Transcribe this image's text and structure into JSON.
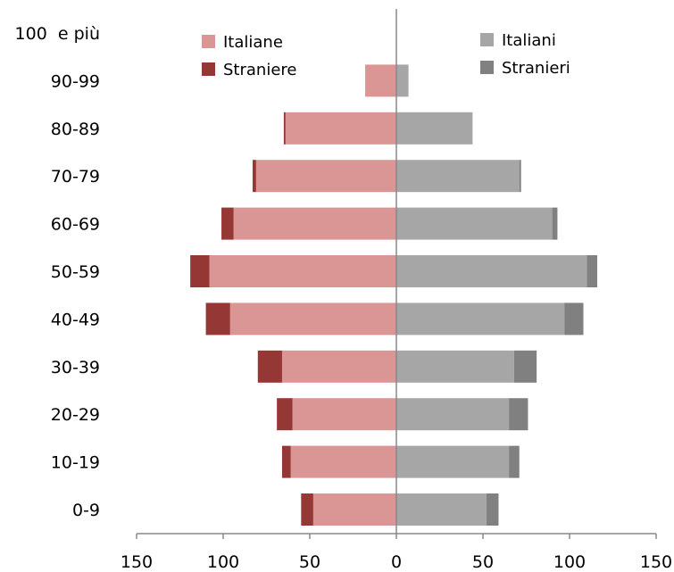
{
  "chart_data": {
    "type": "bar",
    "orientation": "horizontal",
    "layout": "population-pyramid",
    "categories": [
      "0-9",
      "10-19",
      "20-29",
      "30-39",
      "40-49",
      "50-59",
      "60-69",
      "70-79",
      "80-89",
      "90-99",
      "100  e più"
    ],
    "series": [
      {
        "name": "Italiane",
        "side": "left",
        "color": "#da9694",
        "values": [
          48,
          61,
          60,
          66,
          96,
          108,
          94,
          81,
          64,
          18,
          0
        ]
      },
      {
        "name": "Straniere",
        "side": "left",
        "color": "#953735",
        "values": [
          7,
          5,
          9,
          14,
          14,
          11,
          7,
          2,
          1,
          0,
          0
        ]
      },
      {
        "name": "Italiani",
        "side": "right",
        "color": "#a6a6a6",
        "values": [
          52,
          65,
          65,
          68,
          97,
          110,
          90,
          71,
          44,
          7,
          0
        ]
      },
      {
        "name": "Stranieri",
        "side": "right",
        "color": "#808080",
        "values": [
          7,
          6,
          11,
          13,
          11,
          6,
          3,
          1,
          0,
          0,
          0
        ]
      }
    ],
    "x_ticks": [
      "150",
      "100",
      "50",
      "0",
      "50",
      "100",
      "150"
    ],
    "xlim": [
      -150,
      150
    ],
    "legend_placement": "top",
    "grid": false
  }
}
